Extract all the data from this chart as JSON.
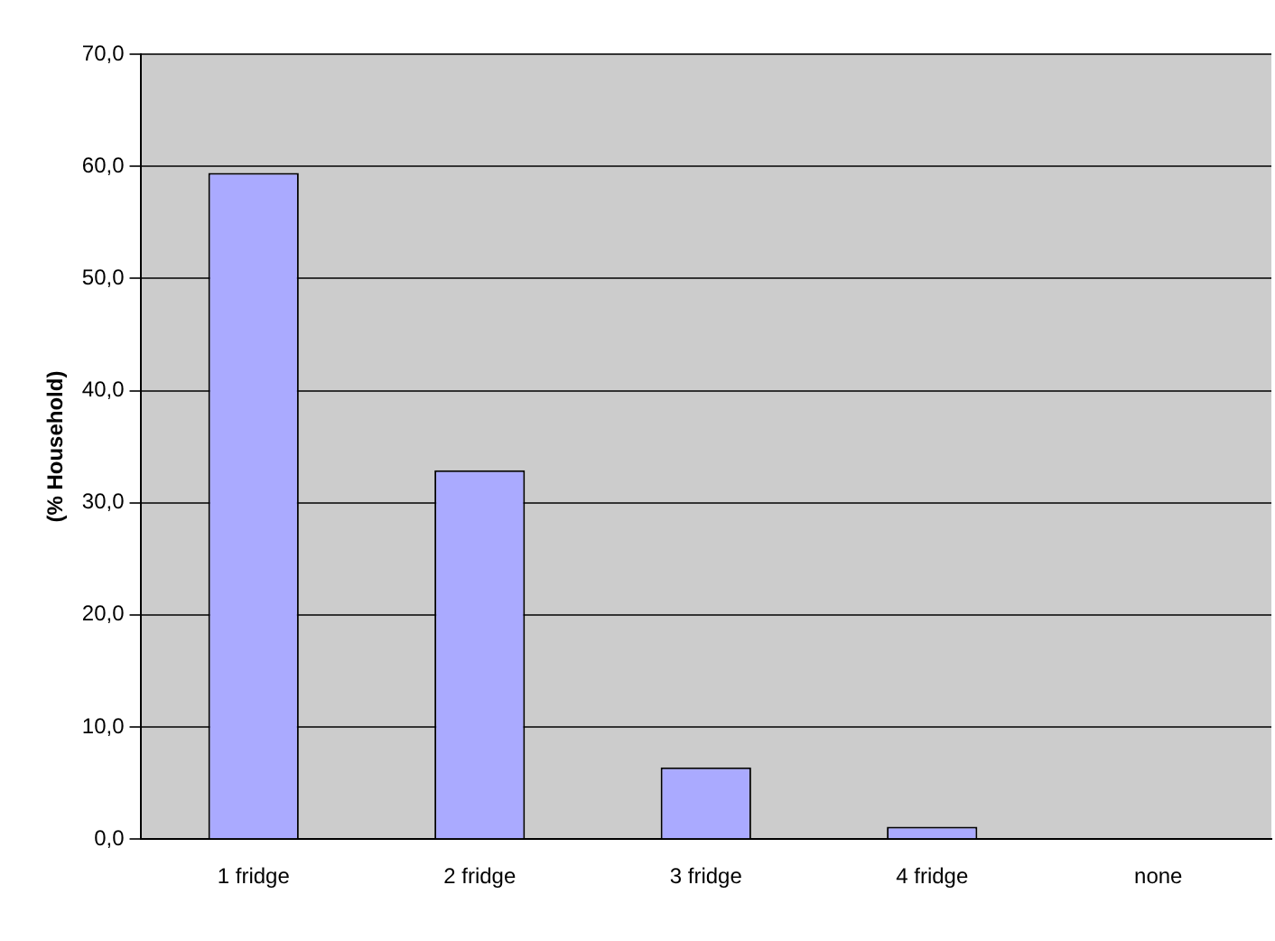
{
  "chart_data": {
    "type": "bar",
    "ylabel": "(% Household)",
    "categories": [
      "1 fridge",
      "2 fridge",
      "3 fridge",
      "4 fridge",
      "none"
    ],
    "values": [
      59.4,
      32.9,
      6.4,
      1.1,
      0
    ],
    "color": "#aaaaff",
    "ylim": [
      0,
      70
    ],
    "yticks": [
      {
        "value": 0,
        "label": "0,0"
      },
      {
        "value": 10,
        "label": "10,0"
      },
      {
        "value": 20,
        "label": "20,0"
      },
      {
        "value": 30,
        "label": "30,0"
      },
      {
        "value": 40,
        "label": "40,0"
      },
      {
        "value": 50,
        "label": "50,0"
      },
      {
        "value": 60,
        "label": "60,0"
      },
      {
        "value": 70,
        "label": "70,0"
      }
    ],
    "grid": "y",
    "legend": false
  }
}
